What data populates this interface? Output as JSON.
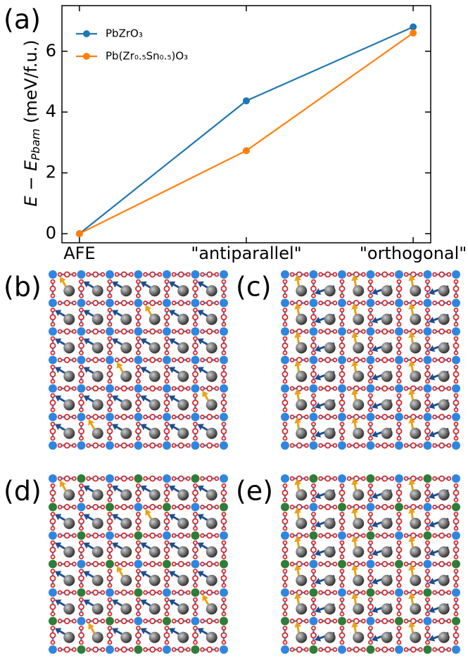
{
  "chart_data": {
    "type": "line",
    "panel_label": "(a)",
    "ylabel": [
      "E − E",
      "Pbam",
      " (meV/f.u.)"
    ],
    "categories": [
      "AFE",
      "\"antiparallel\"",
      "\"orthogonal\""
    ],
    "series": [
      {
        "name": "PbZrO₃",
        "color": "#1f77b4",
        "values": [
          0,
          4.37,
          6.8
        ]
      },
      {
        "name": "Pb(Zr₀.₅Sn₀.₅)O₃",
        "color": "#ff7f0e",
        "values": [
          0,
          2.73,
          6.6
        ]
      }
    ],
    "ylim": [
      -0.3,
      7.5
    ],
    "yticks": [
      0,
      2,
      4,
      6
    ],
    "legend": "upper left"
  },
  "panels": [
    {
      "label": "(b)"
    },
    {
      "label": "(c)"
    },
    {
      "label": "(d)"
    },
    {
      "label": "(e)"
    }
  ]
}
